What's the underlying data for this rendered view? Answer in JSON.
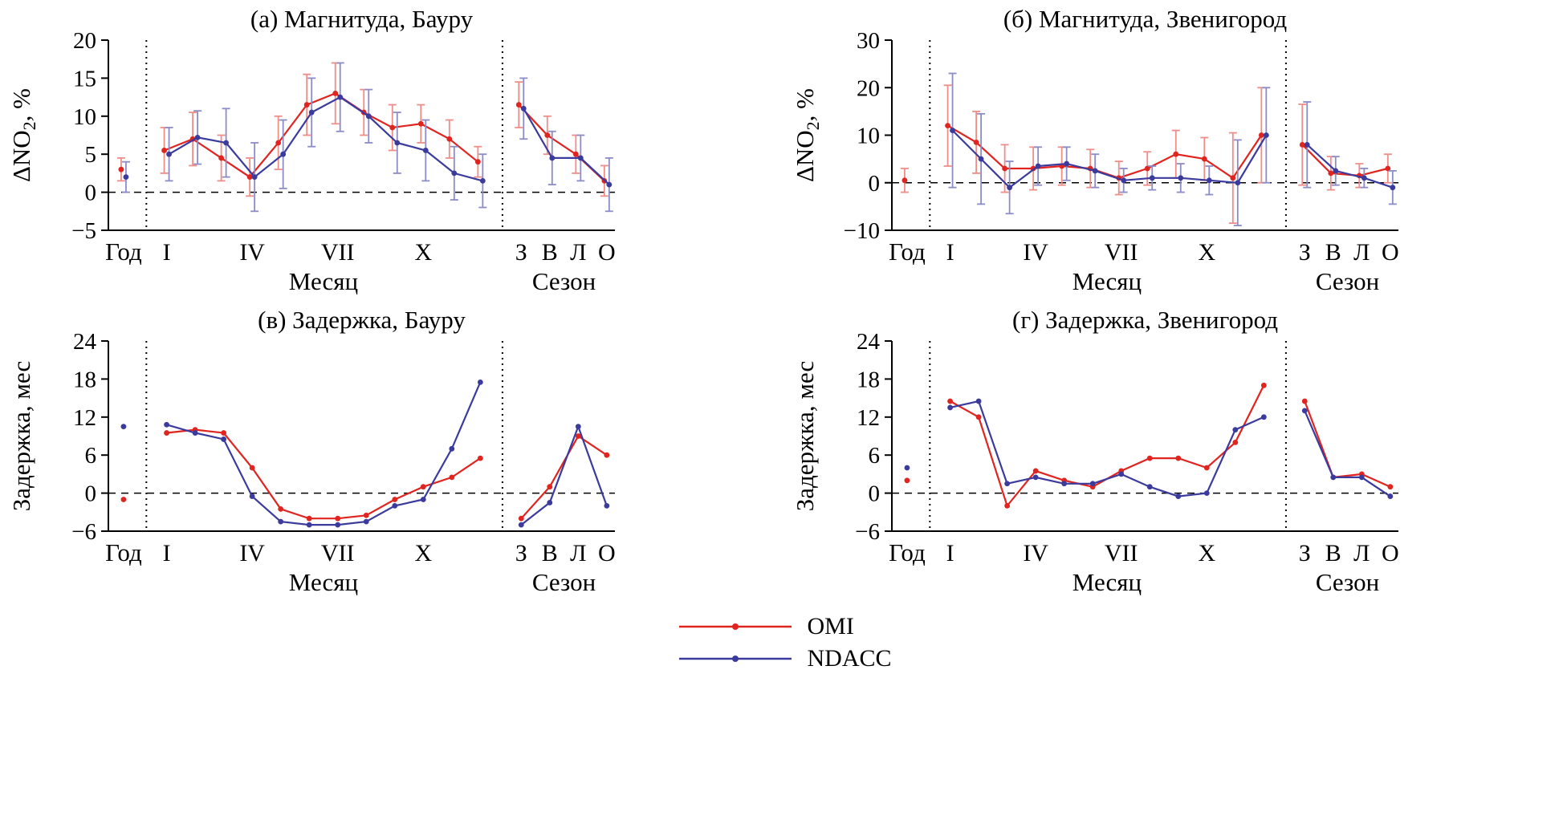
{
  "figure": {
    "colors": {
      "omi": "#e0241f",
      "ndacc": "#3b3b9e",
      "omi_err": "#ef8e88",
      "ndacc_err": "#8c8cc8",
      "axis": "#000000"
    }
  },
  "legend": {
    "items": [
      {
        "label": "OMI",
        "color": "#e0241f"
      },
      {
        "label": "NDACC",
        "color": "#3b3b9e"
      }
    ]
  },
  "chart_data": [
    {
      "id": "a",
      "type": "line",
      "title": "(а) Магнитуда, Бауру",
      "ylabel": "ΔNO2, %",
      "ylabel_parts": [
        "ΔNO",
        "2",
        ", %"
      ],
      "ylim": [
        -5,
        20
      ],
      "yticks": [
        -5,
        0,
        5,
        10,
        15,
        20
      ],
      "zero_line": true,
      "xaxis": {
        "year_label": "Год",
        "month_axis_label": "Месяц",
        "season_axis_label": "Сезон",
        "month_ticks": [
          {
            "pos": 1,
            "label": "I"
          },
          {
            "pos": 4,
            "label": "IV"
          },
          {
            "pos": 7,
            "label": "VII"
          },
          {
            "pos": 10,
            "label": "X"
          }
        ],
        "season_labels": [
          "З",
          "В",
          "Л",
          "О"
        ]
      },
      "series": [
        {
          "name": "OMI",
          "color_key": "omi",
          "year": 3,
          "year_err": 1.5,
          "months": [
            5.5,
            7,
            4.5,
            2,
            6.5,
            11.5,
            13,
            10.5,
            8.5,
            9,
            7,
            4
          ],
          "month_err": [
            3,
            3.5,
            3,
            2.5,
            3.5,
            4,
            4,
            3,
            3,
            2.5,
            2.5,
            2
          ],
          "seasons": [
            11.5,
            7.5,
            5,
            1.5
          ],
          "season_err": [
            3,
            2.5,
            2.5,
            2
          ]
        },
        {
          "name": "NDACC",
          "color_key": "ndacc",
          "year": 2,
          "year_err": 2,
          "months": [
            5,
            7.2,
            6.5,
            2,
            5,
            10.5,
            12.5,
            10,
            6.5,
            5.5,
            2.5,
            1.5
          ],
          "month_err": [
            3.5,
            3.5,
            4.5,
            4.5,
            4.5,
            4.5,
            4.5,
            3.5,
            4,
            4,
            3.5,
            3.5
          ],
          "seasons": [
            11,
            4.5,
            4.5,
            1
          ],
          "season_err": [
            4,
            3.5,
            3,
            3.5
          ]
        }
      ]
    },
    {
      "id": "b",
      "type": "line",
      "title": "(б) Магнитуда, Звенигород",
      "ylabel": "ΔNO2, %",
      "ylabel_parts": [
        "ΔNO",
        "2",
        ", %"
      ],
      "ylim": [
        -10,
        30
      ],
      "yticks": [
        -10,
        0,
        10,
        20,
        30
      ],
      "zero_line": true,
      "xaxis": {
        "year_label": "Год",
        "month_axis_label": "Месяц",
        "season_axis_label": "Сезон",
        "month_ticks": [
          {
            "pos": 1,
            "label": "I"
          },
          {
            "pos": 4,
            "label": "IV"
          },
          {
            "pos": 7,
            "label": "VII"
          },
          {
            "pos": 10,
            "label": "X"
          }
        ],
        "season_labels": [
          "З",
          "В",
          "Л",
          "О"
        ]
      },
      "series": [
        {
          "name": "OMI",
          "color_key": "omi",
          "year": 0.5,
          "year_err": 2.5,
          "months": [
            12,
            8.5,
            3,
            3,
            3.5,
            3,
            1,
            3,
            6,
            5,
            1,
            10
          ],
          "month_err": [
            8.5,
            6.5,
            5,
            4.5,
            4,
            4,
            3.5,
            3.5,
            5,
            4.5,
            9.5,
            10
          ],
          "seasons": [
            8,
            2,
            1.5,
            3
          ],
          "season_err": [
            8.5,
            3.5,
            2.5,
            3
          ]
        },
        {
          "name": "NDACC",
          "color_key": "ndacc",
          "year": null,
          "year_err": null,
          "months": [
            11,
            5,
            -1,
            3.5,
            4,
            2.5,
            0.5,
            1,
            1,
            0.5,
            0,
            10
          ],
          "month_err": [
            12,
            9.5,
            5.5,
            4,
            3.5,
            3.5,
            2.5,
            2.5,
            3,
            3,
            9,
            10
          ],
          "seasons": [
            8,
            2.5,
            1,
            -1
          ],
          "season_err": [
            9,
            3,
            2,
            3.5
          ]
        }
      ]
    },
    {
      "id": "v",
      "type": "line",
      "title": "(в) Задержка, Бауру",
      "ylabel": "Задержка, мес",
      "ylabel_parts": null,
      "ylim": [
        -6,
        24
      ],
      "yticks": [
        -6,
        0,
        6,
        12,
        18,
        24
      ],
      "zero_line": true,
      "xaxis": {
        "year_label": "Год",
        "month_axis_label": "Месяц",
        "season_axis_label": "Сезон",
        "month_ticks": [
          {
            "pos": 1,
            "label": "I"
          },
          {
            "pos": 4,
            "label": "IV"
          },
          {
            "pos": 7,
            "label": "VII"
          },
          {
            "pos": 10,
            "label": "X"
          }
        ],
        "season_labels": [
          "З",
          "В",
          "Л",
          "О"
        ]
      },
      "series": [
        {
          "name": "OMI",
          "color_key": "omi",
          "year": -1,
          "year_err": null,
          "months": [
            9.5,
            10,
            9.5,
            4,
            -2.5,
            -4,
            -4,
            -3.5,
            -1,
            1,
            2.5,
            5.5
          ],
          "month_err": null,
          "seasons": [
            -4,
            1,
            9,
            6
          ],
          "season_err": null
        },
        {
          "name": "NDACC",
          "color_key": "ndacc",
          "year": 10.5,
          "year_err": null,
          "months": [
            10.8,
            9.5,
            8.5,
            -0.5,
            -4.5,
            -5,
            -5,
            -4.5,
            -2,
            -1,
            7,
            17.5
          ],
          "month_err": null,
          "seasons": [
            -5,
            -1.5,
            10.5,
            -2
          ],
          "season_err": null
        }
      ]
    },
    {
      "id": "g",
      "type": "line",
      "title": "(г) Задержка, Звенигород",
      "ylabel": "Задержка, мес",
      "ylabel_parts": null,
      "ylim": [
        -6,
        24
      ],
      "yticks": [
        -6,
        0,
        6,
        12,
        18,
        24
      ],
      "zero_line": true,
      "xaxis": {
        "year_label": "Год",
        "month_axis_label": "Месяц",
        "season_axis_label": "Сезон",
        "month_ticks": [
          {
            "pos": 1,
            "label": "I"
          },
          {
            "pos": 4,
            "label": "IV"
          },
          {
            "pos": 7,
            "label": "VII"
          },
          {
            "pos": 10,
            "label": "X"
          }
        ],
        "season_labels": [
          "З",
          "В",
          "Л",
          "О"
        ]
      },
      "series": [
        {
          "name": "OMI",
          "color_key": "omi",
          "year": 2,
          "year_err": null,
          "months": [
            14.5,
            12,
            -2,
            3.5,
            2,
            1,
            3.5,
            5.5,
            5.5,
            4,
            8,
            17
          ],
          "month_err": null,
          "seasons": [
            14.5,
            2.5,
            3,
            1
          ],
          "season_err": null
        },
        {
          "name": "NDACC",
          "color_key": "ndacc",
          "year": 4,
          "year_err": null,
          "months": [
            13.5,
            14.5,
            1.5,
            2.5,
            1.5,
            1.5,
            3,
            1,
            -0.5,
            0,
            10,
            12
          ],
          "month_err": null,
          "seasons": [
            13,
            2.5,
            2.5,
            -0.5
          ],
          "season_err": null
        }
      ]
    }
  ]
}
